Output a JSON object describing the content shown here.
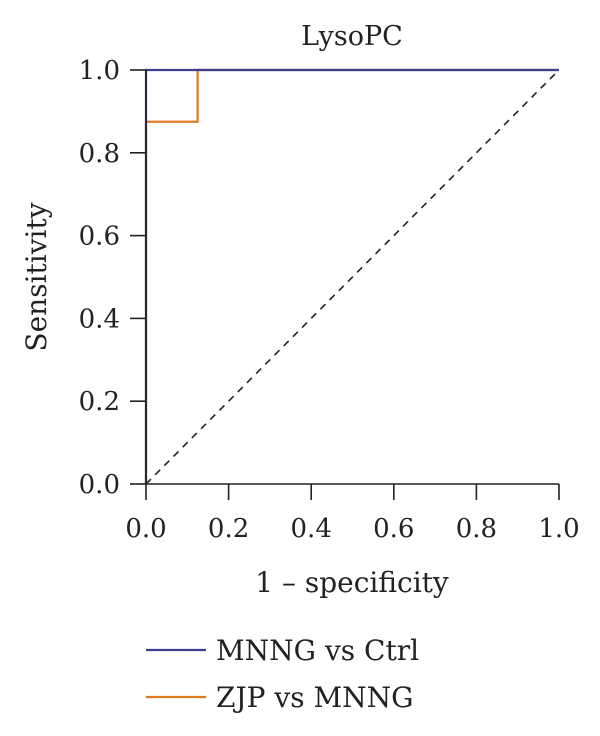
{
  "chart_data": {
    "type": "line",
    "title": "LysoPC",
    "xlabel": "1 – specificity",
    "ylabel": "Sensitivity",
    "xlim": [
      0,
      1
    ],
    "ylim": [
      0,
      1
    ],
    "x_ticks": [
      "0.0",
      "0.2",
      "0.4",
      "0.6",
      "0.8",
      "1.0"
    ],
    "y_ticks": [
      "0.0",
      "0.2",
      "0.4",
      "0.6",
      "0.8",
      "1.0"
    ],
    "grid": false,
    "legend_position": "bottom",
    "reference_line": {
      "style": "dashed",
      "color": "#222222",
      "points": [
        [
          0,
          0
        ],
        [
          1,
          1
        ]
      ]
    },
    "series": [
      {
        "name": "MNNG vs Ctrl",
        "color": "#3b3f8f",
        "x": [
          0,
          0,
          1
        ],
        "y": [
          0,
          1,
          1
        ]
      },
      {
        "name": "ZJP vs MNNG",
        "color": "#e07b20",
        "x": [
          0,
          0,
          0.125,
          0.125,
          1
        ],
        "y": [
          0,
          0.875,
          0.875,
          1,
          1
        ]
      }
    ]
  }
}
